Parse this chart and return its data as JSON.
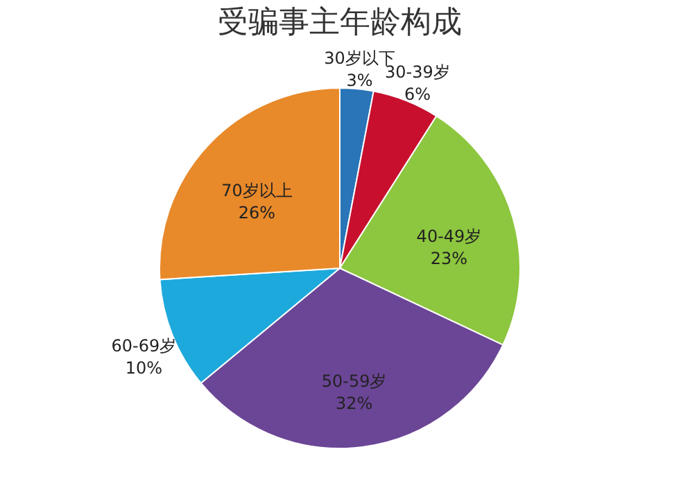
{
  "chart_data": {
    "type": "pie",
    "title": "受骗事主年龄构成",
    "categories": [
      "30岁以下",
      "30-39岁",
      "40-49岁",
      "50-59岁",
      "60-69岁",
      "70岁以上"
    ],
    "values": [
      3,
      6,
      23,
      32,
      10,
      26
    ],
    "value_labels": [
      "3%",
      "6%",
      "23%",
      "32%",
      "10%",
      "26%"
    ],
    "colors": [
      "#2a74b8",
      "#c8102e",
      "#8dc63f",
      "#6b4596",
      "#1ea9dc",
      "#e8892a"
    ],
    "legend": false
  }
}
